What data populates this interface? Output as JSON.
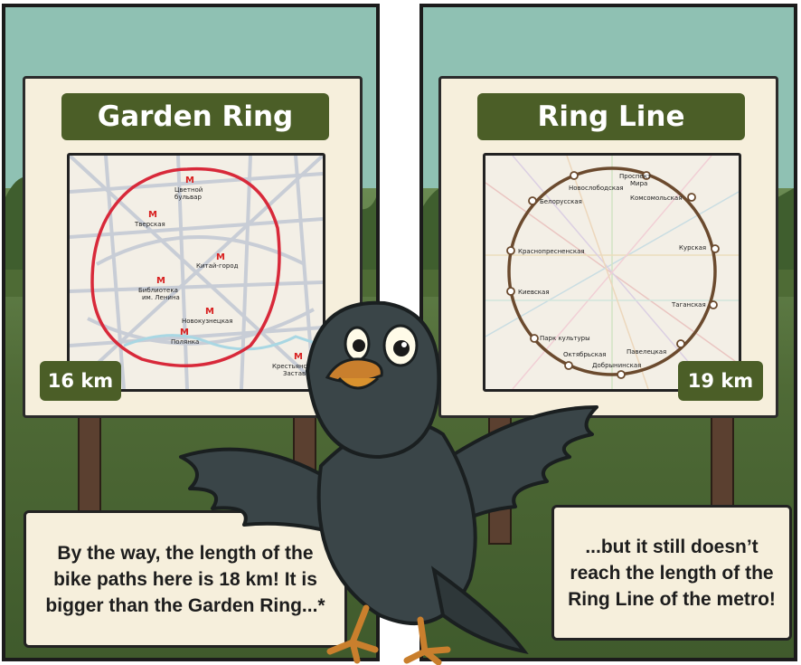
{
  "left_panel": {
    "sign_title": "Garden Ring",
    "length_badge": "16 km",
    "stations": [
      {
        "name1": "Цветной",
        "name2": "бульвар"
      },
      {
        "name1": "Тверская",
        "name2": ""
      },
      {
        "name1": "Китай-город",
        "name2": ""
      },
      {
        "name1": "Библиотека",
        "name2": "им. Ленина"
      },
      {
        "name1": "Новокузнецкая",
        "name2": ""
      },
      {
        "name1": "Полянка",
        "name2": ""
      },
      {
        "name1": "Крестьянская",
        "name2": "Застава"
      }
    ],
    "metro_symbol": "M",
    "ring_color": "#d8293a",
    "speech": "By the way, the length of the bike paths here is 18 km! It is bigger than the Garden Ring...*"
  },
  "right_panel": {
    "sign_title": "Ring Line",
    "length_badge": "19 km",
    "stations": [
      "Проспект",
      "Мира",
      "Новослободская",
      "Комсомольская",
      "Белорусская",
      "Краснопресненская",
      "Курская",
      "Киевская",
      "Таганская",
      "Парк культуры",
      "Павелецкая",
      "Октябрьская",
      "Добрынинская"
    ],
    "ring_color": "#6b4a2e",
    "speech": "...but it still doesn’t reach the length of the Ring Line of the metro!"
  },
  "colors": {
    "sign_title_bg": "#4b5e27",
    "board_bg": "#f6efdc",
    "sky": "#8fc1b3",
    "crow_body": "#3a4548"
  }
}
